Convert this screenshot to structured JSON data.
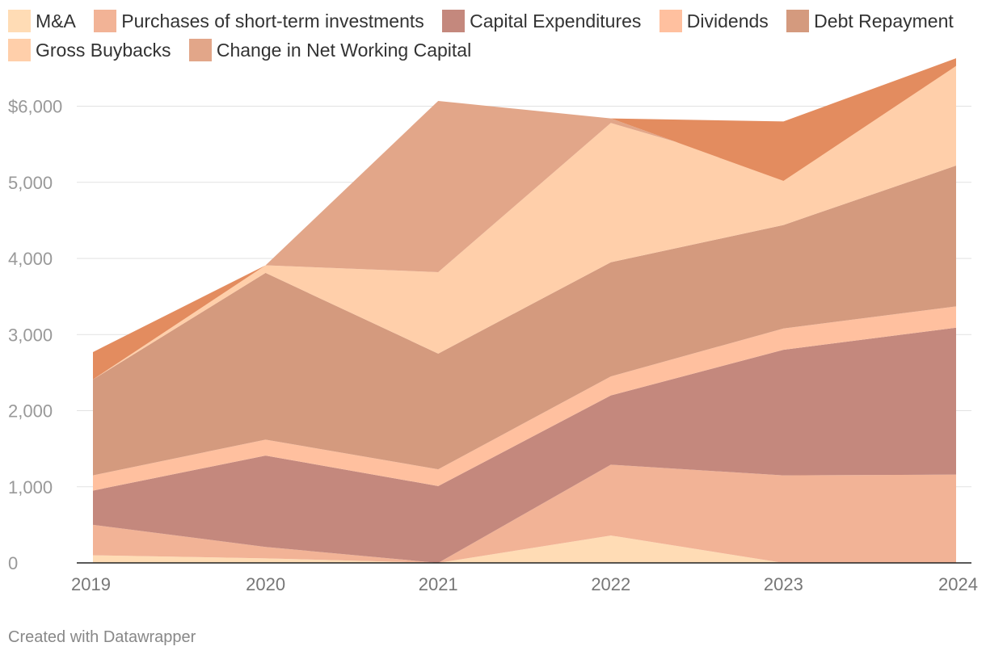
{
  "chart_data": {
    "type": "area",
    "stacked": true,
    "title": "",
    "xlabel": "",
    "ylabel": "",
    "categories": [
      "2019",
      "2020",
      "2021",
      "2022",
      "2023",
      "2024"
    ],
    "ylim": [
      0,
      6600
    ],
    "yticks": [
      0,
      1000,
      2000,
      3000,
      4000,
      5000,
      6000
    ],
    "ytick_labels": [
      "0",
      "1,000",
      "2,000",
      "3,000",
      "4,000",
      "5,000",
      "$6,000"
    ],
    "grid": true,
    "legend_position": "top",
    "series": [
      {
        "name": "M&A",
        "color": "#ffdcb5",
        "values": [
          100,
          60,
          0,
          360,
          0,
          0
        ]
      },
      {
        "name": "Purchases of short-term investments",
        "color": "#f2b396",
        "values": [
          400,
          150,
          0,
          930,
          1150,
          1160
        ]
      },
      {
        "name": "Capital Expenditures",
        "color": "#c4887d",
        "values": [
          450,
          1200,
          1010,
          910,
          1650,
          1930
        ]
      },
      {
        "name": "Dividends",
        "color": "#ffc09f",
        "values": [
          200,
          210,
          220,
          250,
          280,
          280
        ]
      },
      {
        "name": "Debt Repayment",
        "color": "#d49a7e",
        "values": [
          1260,
          2190,
          1520,
          1500,
          1360,
          1850
        ]
      },
      {
        "name": "Gross Buybacks",
        "color": "#ffcfaa",
        "values": [
          0,
          100,
          1070,
          1830,
          680,
          1310
        ]
      },
      {
        "name": "Change in Net Working Capital",
        "color": "#e2a689",
        "values": [
          0,
          0,
          2250,
          60,
          -100,
          0
        ]
      },
      {
        "name": "",
        "color": "#e38c5f",
        "values": [
          360,
          0,
          0,
          0,
          780,
          100
        ]
      }
    ]
  },
  "legend": {
    "items": [
      {
        "label": "M&A",
        "color": "#ffdcb5"
      },
      {
        "label": "Purchases of short-term investments",
        "color": "#f2b396"
      },
      {
        "label": "Capital Expenditures",
        "color": "#c4887d"
      },
      {
        "label": "Dividends",
        "color": "#ffc09f"
      },
      {
        "label": "Debt Repayment",
        "color": "#d49a7e"
      },
      {
        "label": "Gross Buybacks",
        "color": "#ffcfaa"
      },
      {
        "label": "Change in Net Working Capital",
        "color": "#e2a689"
      }
    ]
  },
  "footer": {
    "credit": "Created with Datawrapper"
  }
}
